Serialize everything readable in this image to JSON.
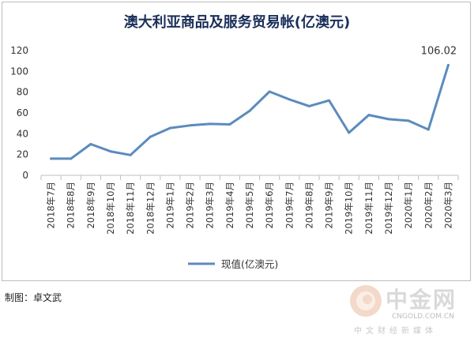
{
  "chart_data": {
    "type": "line",
    "title": "澳大利亚商品及服务贸易帐(亿澳元)",
    "categories": [
      "2018年7月",
      "2018年8月",
      "2018年9月",
      "2018年10月",
      "2018年11月",
      "2018年12月",
      "2019年1月",
      "2019年2月",
      "2019年3月",
      "2019年4月",
      "2019年5月",
      "2019年6月",
      "2019年7月",
      "2019年8月",
      "2019年9月",
      "2019年10月",
      "2019年11月",
      "2019年12月",
      "2020年1月",
      "2020年2月",
      "2020年3月"
    ],
    "series": [
      {
        "name": "现值(亿澳元)",
        "values": [
          16,
          16,
          30,
          23,
          19.5,
          37,
          45.5,
          48,
          49.5,
          49,
          62,
          80.5,
          73,
          66.5,
          72,
          41,
          58,
          54,
          52.5,
          44,
          106.02
        ]
      }
    ],
    "annotations": [
      {
        "category": "2020年3月",
        "text": "106.02"
      }
    ],
    "yticks": [
      "0",
      "20",
      "40",
      "60",
      "80",
      "100",
      "120"
    ],
    "ylim": [
      0,
      120
    ],
    "grid": false,
    "legend": "bottom",
    "colors": {
      "line": "#5b8bbd",
      "title": "#1a2f5a"
    }
  },
  "credit": "制图：卓文武",
  "watermark": {
    "name": "中金网",
    "url": "CNGOLD.COM.CN",
    "tagline": "中文财经新媒体"
  }
}
